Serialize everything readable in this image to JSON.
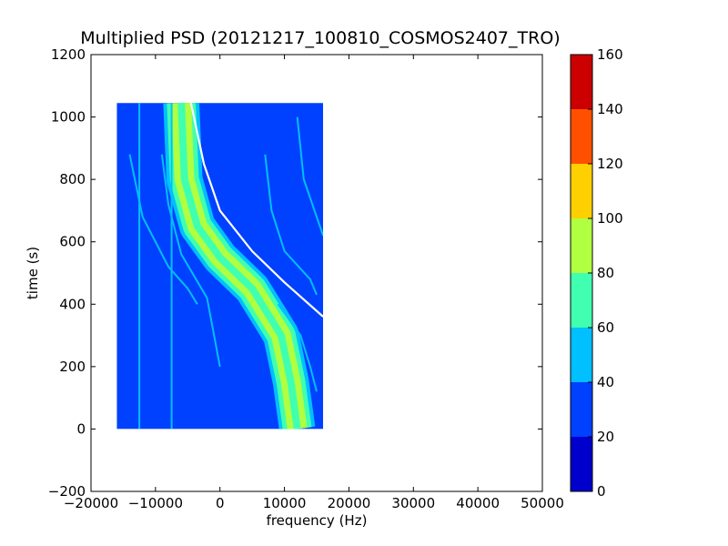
{
  "chart_data": {
    "type": "heatmap",
    "title": "Multiplied PSD (20121217_100810_COSMOS2407_TRO)",
    "xlabel": "frequency (Hz)",
    "ylabel": "time (s)",
    "xlim": [
      -20000,
      50000
    ],
    "ylim": [
      -200,
      1200
    ],
    "x_ticks": [
      -20000,
      -10000,
      0,
      10000,
      20000,
      30000,
      40000,
      50000
    ],
    "x_tick_labels": [
      "−20000",
      "−10000",
      "0",
      "10000",
      "20000",
      "30000",
      "40000",
      "50000"
    ],
    "y_ticks": [
      -200,
      0,
      200,
      400,
      600,
      800,
      1000,
      1200
    ],
    "y_tick_labels": [
      "−200",
      "0",
      "200",
      "400",
      "600",
      "800",
      "1000",
      "1200"
    ],
    "data_extent": {
      "x": [
        -16000,
        16000
      ],
      "y": [
        0,
        1045
      ]
    },
    "background_level": 30,
    "main_trace": {
      "comment_free": true,
      "points": [
        [
          12000,
          0
        ],
        [
          11000,
          150
        ],
        [
          9500,
          300
        ],
        [
          5000,
          450
        ],
        [
          0,
          550
        ],
        [
          -3500,
          650
        ],
        [
          -5500,
          800
        ],
        [
          -6000,
          1045
        ]
      ],
      "half_width": 2800,
      "peak_level": 85
    },
    "bright_trace": {
      "points": [
        [
          16000,
          360
        ],
        [
          10000,
          470
        ],
        [
          5000,
          570
        ],
        [
          0,
          700
        ],
        [
          -2500,
          850
        ],
        [
          -4500,
          1045
        ]
      ],
      "color": "#ffffff"
    },
    "faint_traces": [
      {
        "points": [
          [
            -7500,
            0
          ],
          [
            -7500,
            1045
          ]
        ]
      },
      {
        "points": [
          [
            -12500,
            0
          ],
          [
            -12500,
            1045
          ]
        ]
      },
      {
        "points": [
          [
            -14000,
            880
          ],
          [
            -12000,
            680
          ],
          [
            -8000,
            520
          ],
          [
            -5000,
            450
          ],
          [
            -3500,
            400
          ]
        ]
      },
      {
        "points": [
          [
            -9000,
            880
          ],
          [
            -8000,
            720
          ],
          [
            -6000,
            560
          ],
          [
            -2000,
            420
          ],
          [
            0,
            200
          ]
        ]
      },
      {
        "points": [
          [
            7000,
            880
          ],
          [
            8000,
            700
          ],
          [
            10000,
            570
          ],
          [
            14000,
            480
          ],
          [
            15000,
            430
          ]
        ]
      },
      {
        "points": [
          [
            12000,
            1000
          ],
          [
            13000,
            800
          ],
          [
            15000,
            680
          ],
          [
            16000,
            620
          ]
        ]
      },
      {
        "points": [
          [
            9000,
            400
          ],
          [
            12500,
            300
          ],
          [
            14000,
            200
          ],
          [
            15000,
            120
          ]
        ]
      }
    ],
    "colorbar": {
      "min": 0,
      "max": 160,
      "ticks": [
        0,
        20,
        40,
        60,
        80,
        100,
        120,
        140,
        160
      ],
      "tick_labels": [
        "0",
        "20",
        "40",
        "60",
        "80",
        "100",
        "120",
        "140",
        "160"
      ],
      "levels": [
        {
          "from": 0,
          "to": 20,
          "color": "#0000cc"
        },
        {
          "from": 20,
          "to": 40,
          "color": "#0040ff"
        },
        {
          "from": 40,
          "to": 60,
          "color": "#00c0ff"
        },
        {
          "from": 60,
          "to": 80,
          "color": "#40ffb0"
        },
        {
          "from": 80,
          "to": 100,
          "color": "#b0ff40"
        },
        {
          "from": 100,
          "to": 120,
          "color": "#ffd000"
        },
        {
          "from": 120,
          "to": 140,
          "color": "#ff5000"
        },
        {
          "from": 140,
          "to": 160,
          "color": "#cc0000"
        }
      ]
    }
  }
}
